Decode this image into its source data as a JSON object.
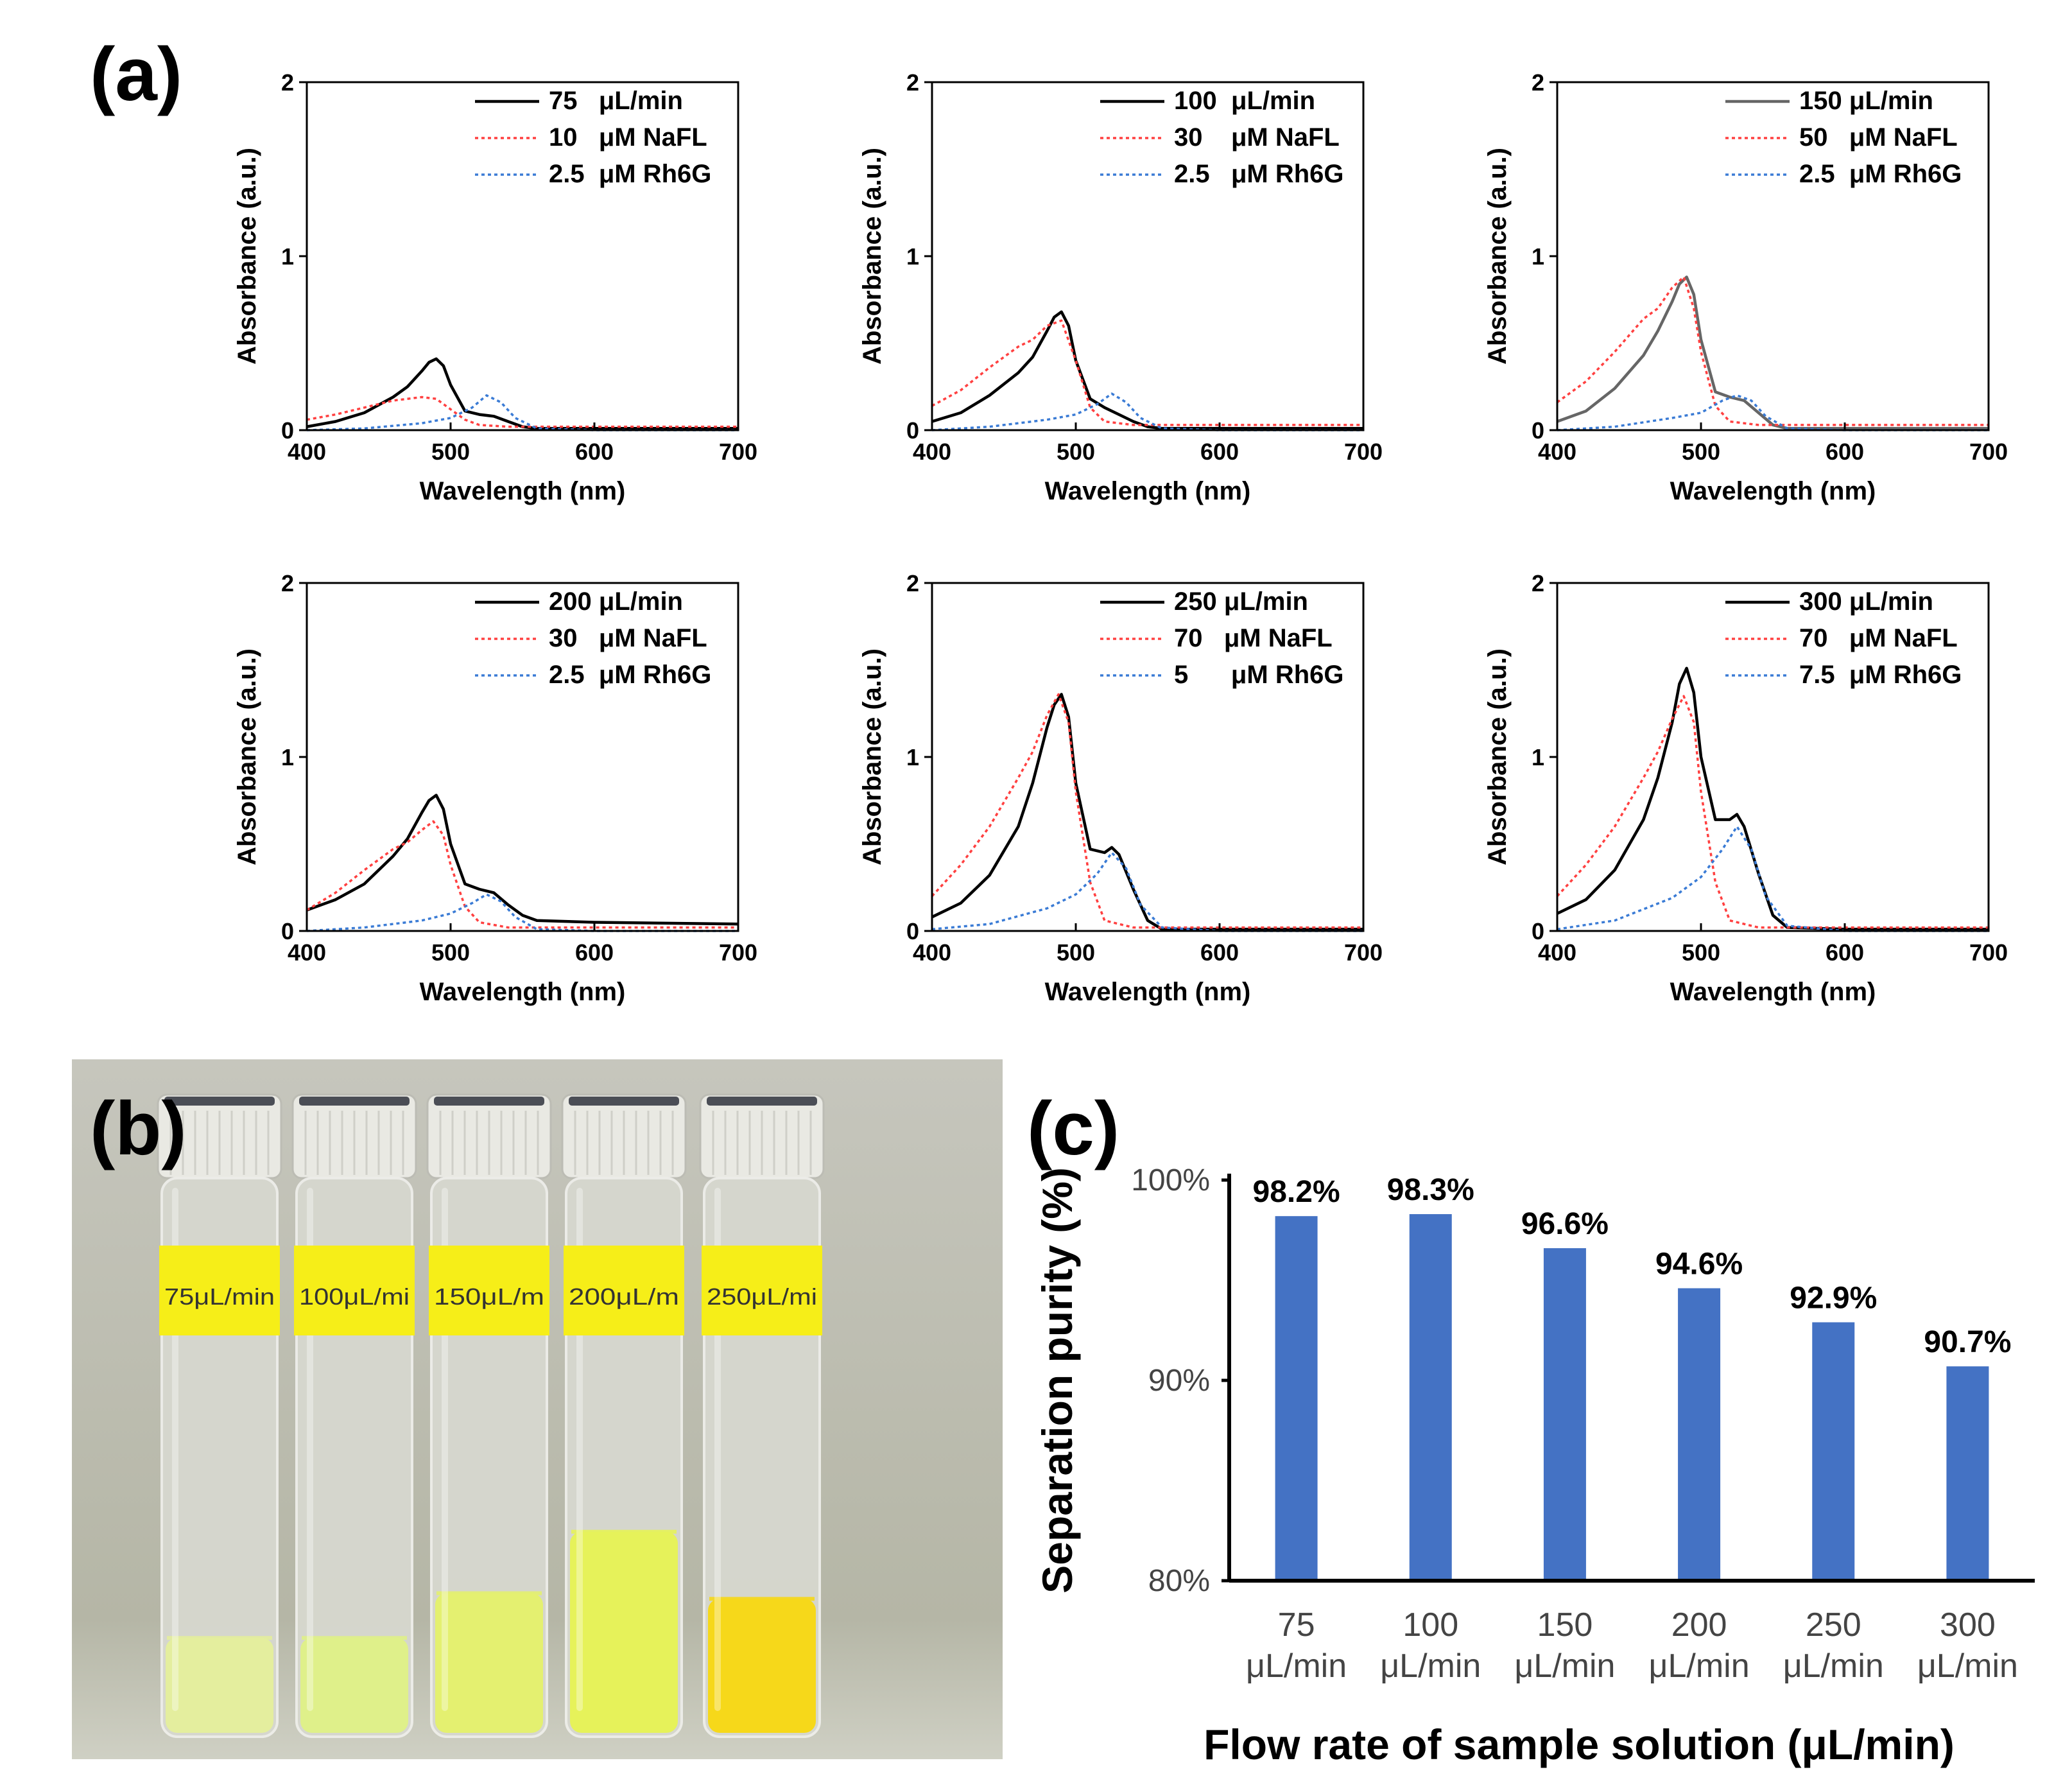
{
  "panel_labels": {
    "a": "(a)",
    "b": "(b)",
    "c": "(c)"
  },
  "colors": {
    "mix": "#000000",
    "mix_150": "#666666",
    "nafl": "#ff4040",
    "rh6g": "#3a7bd5",
    "bar": "#4472c4"
  },
  "photo": {
    "tube_labels": [
      "75μL/min",
      "100μL/mi",
      "150μL/m",
      "200μL/m",
      "250μL/mi"
    ],
    "liquid_colors": [
      "#e4ee9e",
      "#dff08a",
      "#e4f070",
      "#e6f25a",
      "#f6d81a"
    ],
    "liquid_levels": [
      0.17,
      0.17,
      0.25,
      0.36,
      0.24
    ]
  },
  "chart_data": [
    {
      "type": "line",
      "xlabel": "Wavelength (nm)",
      "ylabel": "Absorbance (a.u.)",
      "xlim": [
        400,
        700
      ],
      "ylim": [
        0,
        2
      ],
      "xticks": [
        400,
        500,
        600,
        700
      ],
      "yticks": [
        0,
        1,
        2
      ],
      "legend": [
        "75   μL/min",
        "10   μM NaFL",
        "2.5  μM Rh6G"
      ],
      "series": [
        {
          "name": "75   μL/min",
          "style": "mix",
          "x": [
            400,
            420,
            440,
            460,
            470,
            480,
            485,
            490,
            495,
            500,
            510,
            520,
            530,
            540,
            550,
            560,
            600,
            700
          ],
          "y": [
            0.02,
            0.05,
            0.1,
            0.19,
            0.25,
            0.34,
            0.39,
            0.41,
            0.37,
            0.26,
            0.11,
            0.09,
            0.08,
            0.05,
            0.02,
            0.01,
            0.01,
            0.01
          ]
        },
        {
          "name": "10   μM NaFL",
          "style": "nafl",
          "x": [
            400,
            420,
            440,
            460,
            480,
            490,
            500,
            510,
            520,
            540,
            560,
            600,
            700
          ],
          "y": [
            0.06,
            0.09,
            0.13,
            0.17,
            0.19,
            0.18,
            0.12,
            0.06,
            0.03,
            0.02,
            0.02,
            0.02,
            0.02
          ]
        },
        {
          "name": "2.5  μM Rh6G",
          "style": "rh6g",
          "x": [
            400,
            440,
            480,
            500,
            515,
            525,
            535,
            545,
            560,
            600,
            700
          ],
          "y": [
            0,
            0.01,
            0.04,
            0.07,
            0.13,
            0.2,
            0.16,
            0.07,
            0.01,
            0,
            0
          ]
        }
      ]
    },
    {
      "type": "line",
      "xlabel": "Wavelength (nm)",
      "ylabel": "Absorbance (a.u.)",
      "xlim": [
        400,
        700
      ],
      "ylim": [
        0,
        2
      ],
      "xticks": [
        400,
        500,
        600,
        700
      ],
      "yticks": [
        0,
        1,
        2
      ],
      "legend": [
        "100  μL/min",
        "30    μM NaFL",
        "2.5   μM Rh6G"
      ],
      "series": [
        {
          "name": "100  μL/min",
          "style": "mix",
          "x": [
            400,
            420,
            440,
            460,
            470,
            480,
            485,
            490,
            495,
            500,
            510,
            520,
            530,
            540,
            550,
            560,
            600,
            700
          ],
          "y": [
            0.05,
            0.1,
            0.2,
            0.33,
            0.42,
            0.57,
            0.65,
            0.68,
            0.6,
            0.4,
            0.18,
            0.13,
            0.09,
            0.05,
            0.02,
            0.01,
            0.01,
            0.01
          ]
        },
        {
          "name": "30    μM NaFL",
          "style": "nafl",
          "x": [
            400,
            420,
            440,
            460,
            470,
            480,
            490,
            500,
            510,
            520,
            540,
            560,
            600,
            700
          ],
          "y": [
            0.14,
            0.23,
            0.36,
            0.48,
            0.52,
            0.6,
            0.63,
            0.4,
            0.13,
            0.05,
            0.03,
            0.03,
            0.03,
            0.03
          ]
        },
        {
          "name": "2.5   μM Rh6G",
          "style": "rh6g",
          "x": [
            400,
            440,
            480,
            500,
            515,
            525,
            535,
            545,
            560,
            600,
            700
          ],
          "y": [
            0,
            0.02,
            0.06,
            0.09,
            0.15,
            0.21,
            0.16,
            0.07,
            0.01,
            0,
            0
          ]
        }
      ]
    },
    {
      "type": "line",
      "xlabel": "Wavelength (nm)",
      "ylabel": "Absorbance (a.u.)",
      "xlim": [
        400,
        700
      ],
      "ylim": [
        0,
        2
      ],
      "xticks": [
        400,
        500,
        600,
        700
      ],
      "yticks": [
        0,
        1,
        2
      ],
      "legend": [
        "150 μL/min",
        "50   μM NaFL",
        "2.5  μM Rh6G"
      ],
      "series": [
        {
          "name": "150 μL/min",
          "style": "mix_150",
          "x": [
            400,
            420,
            440,
            460,
            470,
            480,
            485,
            490,
            495,
            500,
            510,
            520,
            530,
            540,
            550,
            560,
            600,
            700
          ],
          "y": [
            0.05,
            0.11,
            0.24,
            0.43,
            0.57,
            0.74,
            0.84,
            0.88,
            0.78,
            0.52,
            0.22,
            0.19,
            0.17,
            0.1,
            0.03,
            0.01,
            0.01,
            0.01
          ]
        },
        {
          "name": "50   μM NaFL",
          "style": "nafl",
          "x": [
            400,
            420,
            440,
            460,
            470,
            480,
            488,
            495,
            500,
            510,
            520,
            540,
            560,
            600,
            700
          ],
          "y": [
            0.16,
            0.28,
            0.45,
            0.64,
            0.7,
            0.82,
            0.88,
            0.7,
            0.45,
            0.14,
            0.05,
            0.03,
            0.03,
            0.03,
            0.03
          ]
        },
        {
          "name": "2.5  μM Rh6G",
          "style": "rh6g",
          "x": [
            400,
            440,
            480,
            500,
            515,
            525,
            535,
            545,
            560,
            600,
            700
          ],
          "y": [
            0,
            0.02,
            0.07,
            0.1,
            0.17,
            0.2,
            0.17,
            0.08,
            0.01,
            0,
            0
          ]
        }
      ]
    },
    {
      "type": "line",
      "xlabel": "Wavelength (nm)",
      "ylabel": "Absorbance (a.u.)",
      "xlim": [
        400,
        700
      ],
      "ylim": [
        0,
        2
      ],
      "xticks": [
        400,
        500,
        600,
        700
      ],
      "yticks": [
        0,
        1,
        2
      ],
      "legend": [
        "200 μL/min",
        "30   μM NaFL",
        "2.5  μM Rh6G"
      ],
      "series": [
        {
          "name": "200 μL/min",
          "style": "mix",
          "x": [
            400,
            420,
            440,
            460,
            470,
            480,
            485,
            490,
            495,
            500,
            510,
            520,
            530,
            540,
            550,
            560,
            600,
            700
          ],
          "y": [
            0.12,
            0.18,
            0.27,
            0.43,
            0.53,
            0.68,
            0.75,
            0.78,
            0.7,
            0.5,
            0.27,
            0.24,
            0.22,
            0.15,
            0.09,
            0.06,
            0.05,
            0.04
          ]
        },
        {
          "name": "30   μM NaFL",
          "style": "nafl",
          "x": [
            400,
            420,
            440,
            460,
            470,
            480,
            488,
            495,
            500,
            510,
            520,
            540,
            560,
            600,
            700
          ],
          "y": [
            0.12,
            0.22,
            0.35,
            0.47,
            0.51,
            0.58,
            0.63,
            0.55,
            0.38,
            0.14,
            0.05,
            0.02,
            0.02,
            0.02,
            0.02
          ]
        },
        {
          "name": "2.5  μM Rh6G",
          "style": "rh6g",
          "x": [
            400,
            440,
            480,
            500,
            515,
            525,
            535,
            545,
            560,
            600,
            700
          ],
          "y": [
            0,
            0.02,
            0.06,
            0.1,
            0.16,
            0.21,
            0.17,
            0.08,
            0.01,
            0,
            0
          ]
        }
      ]
    },
    {
      "type": "line",
      "xlabel": "Wavelength (nm)",
      "ylabel": "Absorbance (a.u.)",
      "xlim": [
        400,
        700
      ],
      "ylim": [
        0,
        2
      ],
      "xticks": [
        400,
        500,
        600,
        700
      ],
      "yticks": [
        0,
        1,
        2
      ],
      "legend": [
        "250 μL/min",
        "70   μM NaFL",
        "5      μM Rh6G"
      ],
      "series": [
        {
          "name": "250 μL/min",
          "style": "mix",
          "x": [
            400,
            420,
            440,
            460,
            470,
            480,
            485,
            490,
            495,
            500,
            510,
            520,
            525,
            530,
            540,
            550,
            560,
            600,
            700
          ],
          "y": [
            0.08,
            0.16,
            0.32,
            0.6,
            0.85,
            1.17,
            1.3,
            1.36,
            1.23,
            0.85,
            0.47,
            0.45,
            0.48,
            0.44,
            0.24,
            0.06,
            0.01,
            0.01,
            0.01
          ]
        },
        {
          "name": "70   μM NaFL",
          "style": "nafl",
          "x": [
            400,
            420,
            440,
            460,
            470,
            480,
            488,
            495,
            500,
            510,
            520,
            540,
            560,
            600,
            700
          ],
          "y": [
            0.2,
            0.38,
            0.6,
            0.88,
            1.03,
            1.24,
            1.36,
            1.2,
            0.8,
            0.28,
            0.06,
            0.02,
            0.02,
            0.02,
            0.02
          ]
        },
        {
          "name": "5      μM Rh6G",
          "style": "rh6g",
          "x": [
            400,
            440,
            480,
            500,
            515,
            525,
            535,
            545,
            560,
            600,
            700
          ],
          "y": [
            0.01,
            0.04,
            0.13,
            0.21,
            0.33,
            0.45,
            0.36,
            0.15,
            0.02,
            0,
            0
          ]
        }
      ]
    },
    {
      "type": "line",
      "xlabel": "Wavelength (nm)",
      "ylabel": "Absorbance (a.u.)",
      "xlim": [
        400,
        700
      ],
      "ylim": [
        0,
        2
      ],
      "xticks": [
        400,
        500,
        600,
        700
      ],
      "yticks": [
        0,
        1,
        2
      ],
      "legend": [
        "300 μL/min",
        "70   μM NaFL",
        "7.5  μM Rh6G"
      ],
      "series": [
        {
          "name": "300 μL/min",
          "style": "mix",
          "x": [
            400,
            420,
            440,
            460,
            470,
            480,
            485,
            490,
            495,
            500,
            510,
            520,
            525,
            530,
            540,
            550,
            560,
            600,
            700
          ],
          "y": [
            0.1,
            0.18,
            0.35,
            0.64,
            0.88,
            1.2,
            1.42,
            1.51,
            1.37,
            1.0,
            0.64,
            0.64,
            0.67,
            0.6,
            0.33,
            0.09,
            0.02,
            0.01,
            0.01
          ]
        },
        {
          "name": "70   μM NaFL",
          "style": "nafl",
          "x": [
            400,
            420,
            440,
            460,
            470,
            480,
            488,
            495,
            500,
            510,
            520,
            540,
            560,
            600,
            700
          ],
          "y": [
            0.2,
            0.38,
            0.6,
            0.88,
            1.03,
            1.22,
            1.35,
            1.2,
            0.8,
            0.28,
            0.06,
            0.02,
            0.02,
            0.02,
            0.02
          ]
        },
        {
          "name": "7.5  μM Rh6G",
          "style": "rh6g",
          "x": [
            400,
            440,
            480,
            500,
            515,
            525,
            535,
            545,
            560,
            600,
            700
          ],
          "y": [
            0.01,
            0.06,
            0.19,
            0.31,
            0.47,
            0.6,
            0.47,
            0.2,
            0.03,
            0,
            0
          ]
        }
      ]
    },
    {
      "type": "bar",
      "xlabel": "Flow rate of sample solution (μL/min)",
      "ylabel": "Separation purity (%)",
      "ylim": [
        80,
        100
      ],
      "yticks": [
        "80%",
        "90%",
        "100%"
      ],
      "categories": [
        [
          "75",
          "μL/min"
        ],
        [
          "100",
          "μL/min"
        ],
        [
          "150",
          "μL/min"
        ],
        [
          "200",
          "μL/min"
        ],
        [
          "250",
          "μL/min"
        ],
        [
          "300",
          "μL/min"
        ]
      ],
      "values": [
        98.2,
        98.3,
        96.6,
        94.6,
        92.9,
        90.7
      ],
      "data_labels": [
        "98.2%",
        "98.3%",
        "96.6%",
        "94.6%",
        "92.9%",
        "90.7%"
      ]
    }
  ]
}
